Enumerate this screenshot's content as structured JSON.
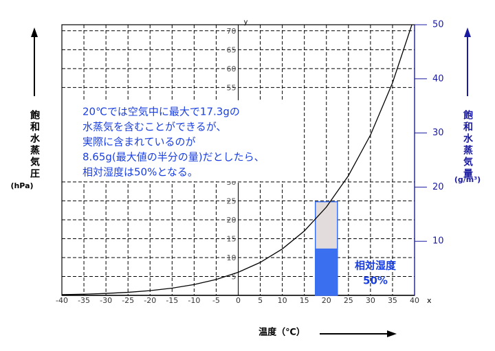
{
  "chart_data": {
    "type": "line",
    "x": [
      -40,
      -35,
      -30,
      -25,
      -20,
      -15,
      -10,
      -5,
      0,
      5,
      10,
      15,
      20,
      25,
      30,
      35,
      40
    ],
    "series": [
      {
        "color": "#000000",
        "values": [
          0.19,
          0.31,
          0.51,
          0.81,
          1.25,
          1.91,
          2.86,
          4.21,
          6.11,
          8.72,
          12.28,
          17.04,
          23.37,
          31.67,
          42.43,
          56.22,
          73.75
        ]
      }
    ],
    "xlim": [
      -40,
      40
    ],
    "xticks": [
      -40,
      -35,
      -30,
      -25,
      -20,
      -15,
      -10,
      -5,
      0,
      5,
      10,
      15,
      20,
      25,
      30,
      35,
      40
    ],
    "ylim": [
      0,
      71.6
    ],
    "yticks": [
      5,
      10,
      15,
      20,
      25,
      30,
      55,
      60,
      65,
      70
    ],
    "y2lim": [
      0,
      50
    ],
    "y2ticks": [
      10,
      20,
      30,
      40,
      50
    ],
    "grid": true,
    "x_label": "温度（℃）",
    "x_axis_name": "x",
    "y_axis_name": "y",
    "y_label": "飽和水蒸気圧",
    "y_unit": "(hPa)",
    "y2_label": "飽和水蒸気量",
    "y2_unit": "(g/m³)",
    "annotation": [
      "20℃では空気中に最大で17.3gの",
      "水蒸気を含むことができるが、",
      "実際に含まれているのが",
      "8.65g(最大値の半分の量)だとしたら、",
      "相対湿度は50%となる。"
    ],
    "vapor_x": 20,
    "max_vapor": 17.3,
    "actual_vapor": 8.65,
    "max_color": "#e2dcdc",
    "actual_color": "#3a6ff0",
    "humidity_label": [
      "相対湿度",
      "50%"
    ]
  }
}
